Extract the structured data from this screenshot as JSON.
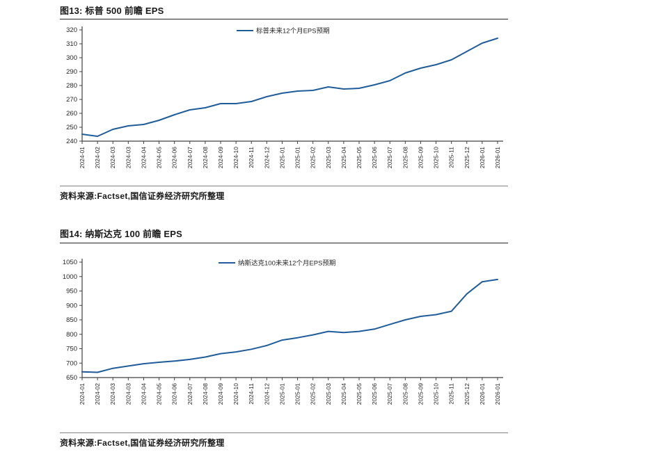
{
  "page": {
    "background": "#ffffff"
  },
  "accent_color": "#1f5c99",
  "figures": [
    {
      "title": "图13: 标普 500 前瞻 EPS",
      "source": "资料来源:Factset,国信证券经济研究所整理"
    },
    {
      "title": "图14: 纳斯达克 100 前瞻 EPS",
      "source": "资料来源:Factset,国信证券经济研究所整理"
    }
  ],
  "chart_data": [
    {
      "type": "line",
      "title": "图13: 标普 500 前瞻 EPS",
      "legend_position": "top-center",
      "grid": false,
      "ylim": [
        240,
        320
      ],
      "ytick_step": 10,
      "x_labels": [
        "2024-01",
        "2024-02",
        "2024-03",
        "2024-03",
        "2024-04",
        "2024-05",
        "2024-06",
        "2024-07",
        "2024-08",
        "2024-09",
        "2024-10",
        "2024-11",
        "2024-12",
        "2025-01",
        "2025-01",
        "2025-02",
        "2025-03",
        "2025-04",
        "2025-05",
        "2025-06",
        "2025-07",
        "2025-08",
        "2025-09",
        "2025-10",
        "2025-11",
        "2025-12",
        "2026-01",
        "2026-01"
      ],
      "series": [
        {
          "name": "标普未来12个月EPS预期",
          "color": "#1f5c99",
          "values": [
            245,
            243.5,
            248.5,
            251,
            252,
            255,
            259,
            262.5,
            264,
            267,
            267,
            268.5,
            272,
            274.5,
            276,
            276.5,
            279,
            277.5,
            278,
            280.5,
            283.5,
            289,
            292.5,
            295,
            298.5,
            304.5,
            310.5,
            314
          ]
        }
      ]
    },
    {
      "type": "line",
      "title": "图14: 纳斯达克 100 前瞻 EPS",
      "legend_position": "top-center",
      "grid": false,
      "ylim": [
        650,
        1050
      ],
      "ytick_step": 50,
      "x_labels": [
        "2024-01",
        "2024-02",
        "2024-03",
        "2024-03",
        "2024-04",
        "2024-05",
        "2024-06",
        "2024-07",
        "2024-08",
        "2024-09",
        "2024-10",
        "2024-11",
        "2024-12",
        "2025-01",
        "2025-01",
        "2025-02",
        "2025-03",
        "2025-04",
        "2025-05",
        "2025-06",
        "2025-07",
        "2025-08",
        "2025-09",
        "2025-10",
        "2025-11",
        "2025-12",
        "2026-01",
        "2026-01"
      ],
      "series": [
        {
          "name": "纳斯达克100未来12个月EPS预期",
          "color": "#1f5c99",
          "values": [
            670,
            668,
            682,
            690,
            698,
            703,
            707,
            713,
            721,
            733,
            739,
            748,
            761,
            780,
            788,
            798,
            810,
            806,
            810,
            818,
            834,
            850,
            862,
            868,
            880,
            940,
            982,
            990
          ]
        }
      ]
    }
  ]
}
